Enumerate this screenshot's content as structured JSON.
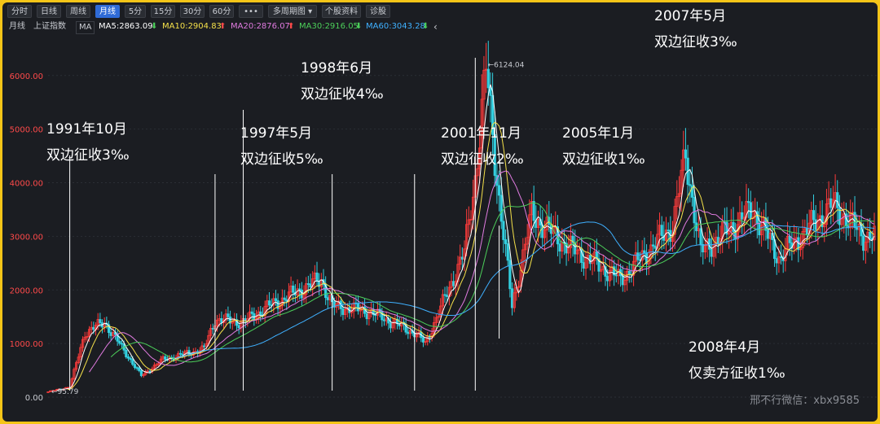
{
  "toolbar": {
    "buttons": [
      "分时",
      "日线",
      "周线",
      "月线",
      "5分",
      "15分",
      "30分",
      "60分",
      "•••",
      "多周期图",
      "个股资料",
      "诊股"
    ],
    "active_index": 3
  },
  "ma_bar": {
    "period": "月线",
    "index_name": "上证指数",
    "ma_label": "MA",
    "ma5": "MA5:2863.09",
    "ma10": "MA10:2904.83",
    "ma20": "MA20:2876.07",
    "ma30": "MA30:2916.05",
    "ma60": "MA60:3043.28",
    "collapse": "‹",
    "colors": {
      "ma5": "#ffffff",
      "ma10": "#f5e14a",
      "ma20": "#e07be0",
      "ma30": "#4ccf5a",
      "ma60": "#3fb0ff"
    }
  },
  "annotations": [
    {
      "date": "1991年10月",
      "text": "双边征收3‰"
    },
    {
      "date": "1997年5月",
      "text": "双边征收5‰"
    },
    {
      "date": "1998年6月",
      "text": "双边征收4‰"
    },
    {
      "date": "2001年11月",
      "text": "双边征收2‰"
    },
    {
      "date": "2005年1月",
      "text": "双边征收1‰"
    },
    {
      "date": "2007年5月",
      "text": "双边征收3‰"
    },
    {
      "date": "2008年4月",
      "text": "仅卖方征收1‰"
    }
  ],
  "watermark": "邢不行微信：xbx9585",
  "chart_data": {
    "type": "candlestick",
    "title": "",
    "xlabel": "",
    "ylabel": "",
    "ylim": [
      0,
      6300
    ],
    "y_ticks": [
      "0.00",
      "1000.00",
      "2000.00",
      "3000.00",
      "4000.00",
      "5000.00",
      "6000.00"
    ],
    "grid": true,
    "max_label": "6124.04",
    "min_label": "95.79",
    "colors": {
      "up": "#ff3b3b",
      "down": "#33d0e0"
    },
    "index_close_approx": [
      {
        "x": "1990-12",
        "y": 100
      },
      {
        "x": "1991-10",
        "y": 190
      },
      {
        "x": "1992-05",
        "y": 1200
      },
      {
        "x": "1993-02",
        "y": 1400
      },
      {
        "x": "1994-07",
        "y": 400
      },
      {
        "x": "1995-05",
        "y": 700
      },
      {
        "x": "1996-12",
        "y": 900
      },
      {
        "x": "1997-05",
        "y": 1450
      },
      {
        "x": "1998-06",
        "y": 1400
      },
      {
        "x": "1999-06",
        "y": 1700
      },
      {
        "x": "2001-06",
        "y": 2200
      },
      {
        "x": "2001-11",
        "y": 1700
      },
      {
        "x": "2003-04",
        "y": 1600
      },
      {
        "x": "2005-01",
        "y": 1200
      },
      {
        "x": "2005-06",
        "y": 1000
      },
      {
        "x": "2006-12",
        "y": 2700
      },
      {
        "x": "2007-05",
        "y": 4100
      },
      {
        "x": "2007-10",
        "y": 6124
      },
      {
        "x": "2008-04",
        "y": 3700
      },
      {
        "x": "2008-10",
        "y": 1700
      },
      {
        "x": "2009-07",
        "y": 3400
      },
      {
        "x": "2010-12",
        "y": 2800
      },
      {
        "x": "2012-12",
        "y": 2200
      },
      {
        "x": "2014-12",
        "y": 3200
      },
      {
        "x": "2015-06",
        "y": 4500
      },
      {
        "x": "2016-01",
        "y": 2700
      },
      {
        "x": "2018-01",
        "y": 3500
      },
      {
        "x": "2019-01",
        "y": 2600
      },
      {
        "x": "2021-02",
        "y": 3600
      },
      {
        "x": "2022-04",
        "y": 3000
      }
    ]
  }
}
